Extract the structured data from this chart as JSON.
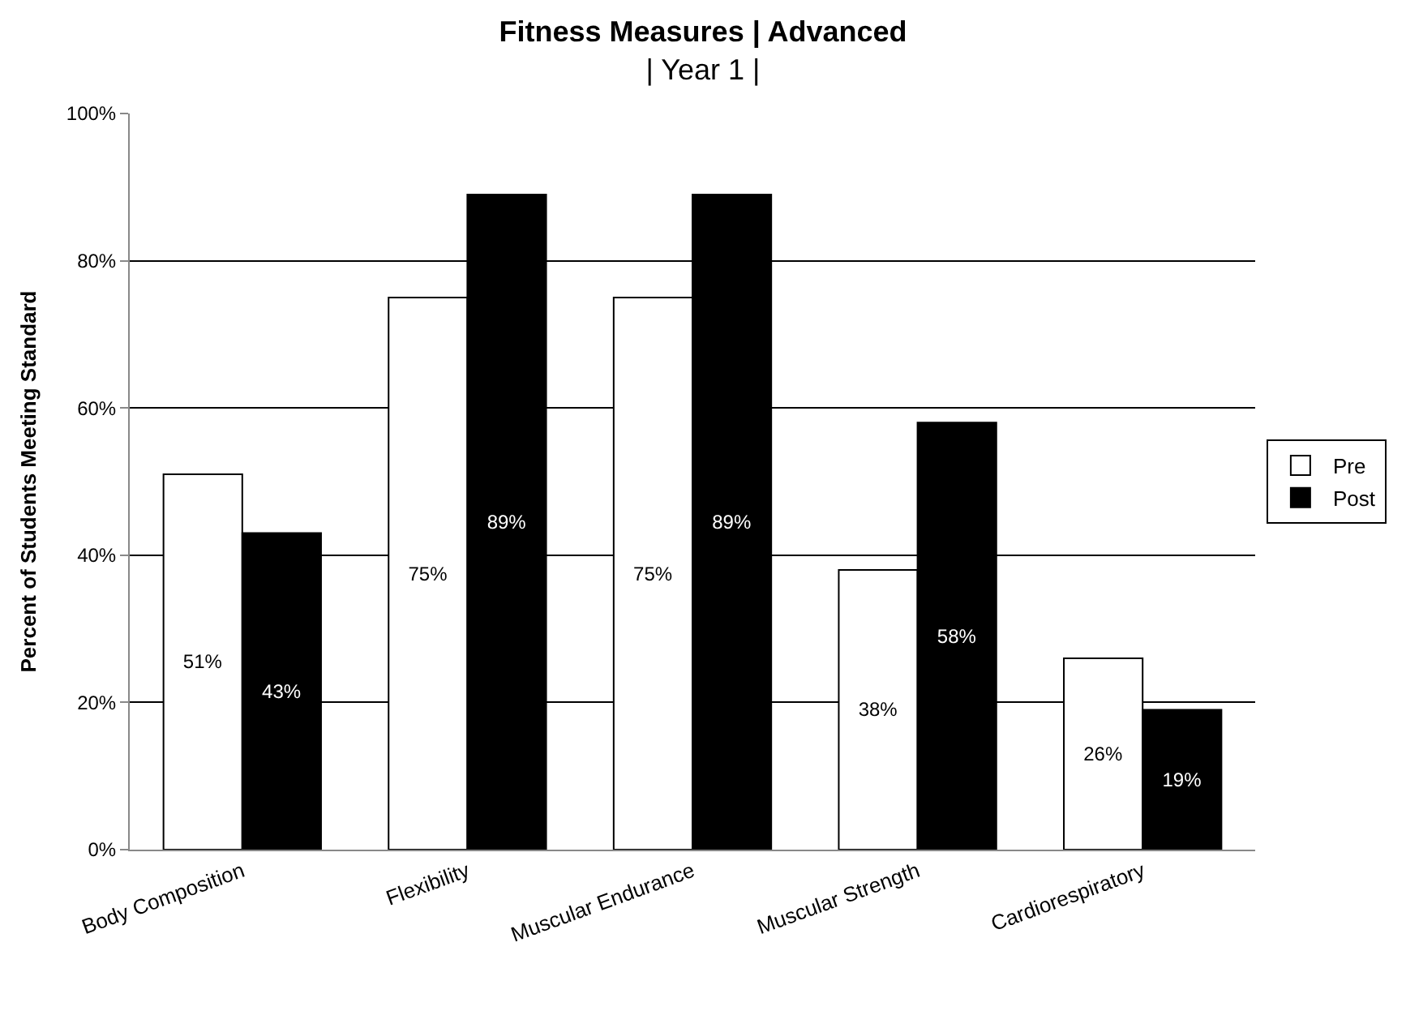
{
  "chart_data": {
    "type": "bar",
    "title": "Fitness Measures | Advanced",
    "subtitle": "| Year 1 |",
    "ylabel": "Percent of Students Meeting Standard",
    "categories": [
      "Body Composition",
      "Flexibility",
      "Muscular Endurance",
      "Muscular Strength",
      "Cardiorespiratory"
    ],
    "series": [
      {
        "name": "Pre",
        "color": "#ffffff",
        "values": [
          51,
          75,
          75,
          38,
          26
        ],
        "value_labels": [
          "51%",
          "75%",
          "75%",
          "38%",
          "26%"
        ]
      },
      {
        "name": "Post",
        "color": "#000000",
        "values": [
          43,
          89,
          89,
          58,
          19
        ],
        "value_labels": [
          "43%",
          "89%",
          "89%",
          "58%",
          "19%"
        ]
      }
    ],
    "ylim": [
      0,
      100
    ],
    "yticks": [
      {
        "value": 0,
        "label": "0%"
      },
      {
        "value": 20,
        "label": "20%"
      },
      {
        "value": 40,
        "label": "40%"
      },
      {
        "value": 60,
        "label": "60%"
      },
      {
        "value": 80,
        "label": "80%"
      },
      {
        "value": 100,
        "label": "100%"
      }
    ],
    "grid": "y",
    "legend": "right"
  }
}
